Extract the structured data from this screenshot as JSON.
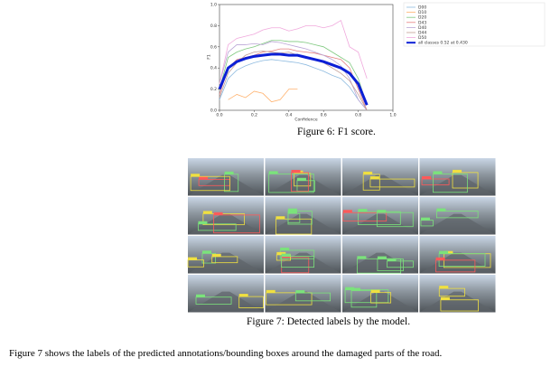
{
  "chart_data": {
    "type": "line",
    "y_label": "F1",
    "x_label": "Confidence",
    "x": [
      0,
      0.05,
      0.1,
      0.15,
      0.2,
      0.25,
      0.3,
      0.35,
      0.4,
      0.45,
      0.5,
      0.55,
      0.6,
      0.65,
      0.7,
      0.75,
      0.8,
      0.85,
      0.9
    ],
    "series": [
      {
        "name": "D00",
        "color": "#8fbbe0",
        "values": [
          0.1,
          0.3,
          0.38,
          0.42,
          0.45,
          0.47,
          0.48,
          0.47,
          0.46,
          0.45,
          0.43,
          0.4,
          0.37,
          0.33,
          0.3,
          0.22,
          0.1,
          0,
          null
        ]
      },
      {
        "name": "D10",
        "color": "#ffb26e",
        "values": [
          null,
          0.1,
          0.15,
          0.12,
          0.18,
          0.16,
          0.08,
          0.1,
          0.2,
          0.2,
          null,
          null,
          null,
          null,
          null,
          null,
          null,
          null,
          null
        ]
      },
      {
        "name": "D20",
        "color": "#7fc97f",
        "values": [
          0.2,
          0.5,
          0.55,
          0.58,
          0.6,
          0.63,
          0.66,
          0.66,
          0.65,
          0.65,
          0.64,
          0.62,
          0.6,
          0.55,
          0.5,
          0.45,
          0.3,
          0.05,
          null
        ]
      },
      {
        "name": "D43",
        "color": "#e57f7f",
        "values": [
          0.15,
          0.4,
          0.48,
          0.5,
          0.52,
          0.55,
          0.56,
          0.58,
          0.58,
          0.56,
          0.55,
          0.54,
          0.52,
          0.5,
          0.48,
          0.4,
          0.2,
          0,
          null
        ]
      },
      {
        "name": "D40",
        "color": "#bba6d6",
        "values": [
          0.25,
          0.55,
          0.62,
          0.62,
          0.63,
          0.62,
          0.65,
          0.64,
          0.62,
          0.6,
          0.58,
          0.55,
          0.52,
          0.48,
          0.42,
          0.3,
          0.1,
          0,
          null
        ]
      },
      {
        "name": "D44",
        "color": "#c29d95",
        "values": [
          0.12,
          0.35,
          0.45,
          0.52,
          0.55,
          0.56,
          0.55,
          0.54,
          0.55,
          0.52,
          0.5,
          0.48,
          0.45,
          0.4,
          0.35,
          0.28,
          0.15,
          0,
          null
        ]
      },
      {
        "name": "D50",
        "color": "#f0a8dc",
        "values": [
          0.25,
          0.62,
          0.68,
          0.7,
          0.72,
          0.76,
          0.78,
          0.78,
          0.75,
          0.77,
          0.8,
          0.8,
          0.78,
          0.8,
          0.85,
          0.6,
          0.55,
          0.3,
          null
        ]
      },
      {
        "name": "all classes 0.52 at 0.430",
        "color": "#0b1fd6",
        "width": 3,
        "values": [
          0.2,
          0.4,
          0.46,
          0.49,
          0.51,
          0.52,
          0.53,
          0.53,
          0.52,
          0.52,
          0.5,
          0.48,
          0.46,
          0.43,
          0.4,
          0.35,
          0.25,
          0.05,
          null
        ]
      }
    ],
    "xlim": [
      0,
      1
    ],
    "ylim": [
      0,
      1
    ],
    "xticks": [
      {
        "value": 0,
        "label": "0.0"
      },
      0.2,
      0.4,
      0.6,
      0.8,
      {
        "value": 1,
        "label": "1.0"
      }
    ],
    "yticks": [
      {
        "value": 0,
        "label": "0.0"
      },
      0.2,
      0.4,
      0.6,
      0.8,
      {
        "value": 1,
        "label": "1.0"
      }
    ],
    "legend": "upper right"
  },
  "figure6_caption": "Figure 6: F1 score.",
  "figure7_caption": "Figure 7: Detected labels by the model.",
  "paragraph": "Figure 7 shows the labels of the predicted annotations/bounding boxes around the damaged parts of the road."
}
